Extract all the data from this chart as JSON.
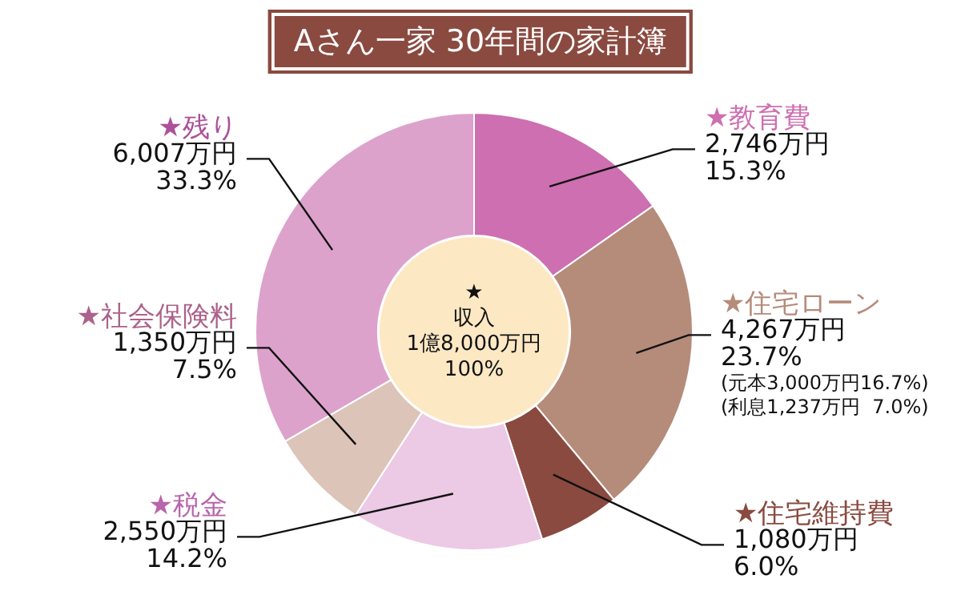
{
  "chart_data": {
    "type": "donut",
    "title": "Aさん一家 30年間の家計簿",
    "categories": [
      "★教育費",
      "★住宅ローン",
      "★住宅維持費",
      "★税金",
      "★社会保険料",
      "★残り"
    ],
    "values": [
      2746,
      4267,
      1080,
      2550,
      1350,
      6007
    ],
    "colors": [
      "#cd6fb0",
      "#b58b7a",
      "#8a4a40",
      "#ecc9e4",
      "#dcc4b8",
      "#dca2cc"
    ],
    "value_labels": [
      "2,746万円\n15.3%",
      "4,267万円\n23.7%",
      "1,080万円\n6.0%",
      "2,550万円\n14.2%",
      "1,350万円\n7.5%",
      "6,007万円\n33.3%"
    ],
    "annotations": [
      "★\n収入\n1億8,000万円\n100%",
      "(元本3,000万円16.7%)",
      "(利息1,237万円  7.0%)"
    ],
    "legend": false
  }
}
